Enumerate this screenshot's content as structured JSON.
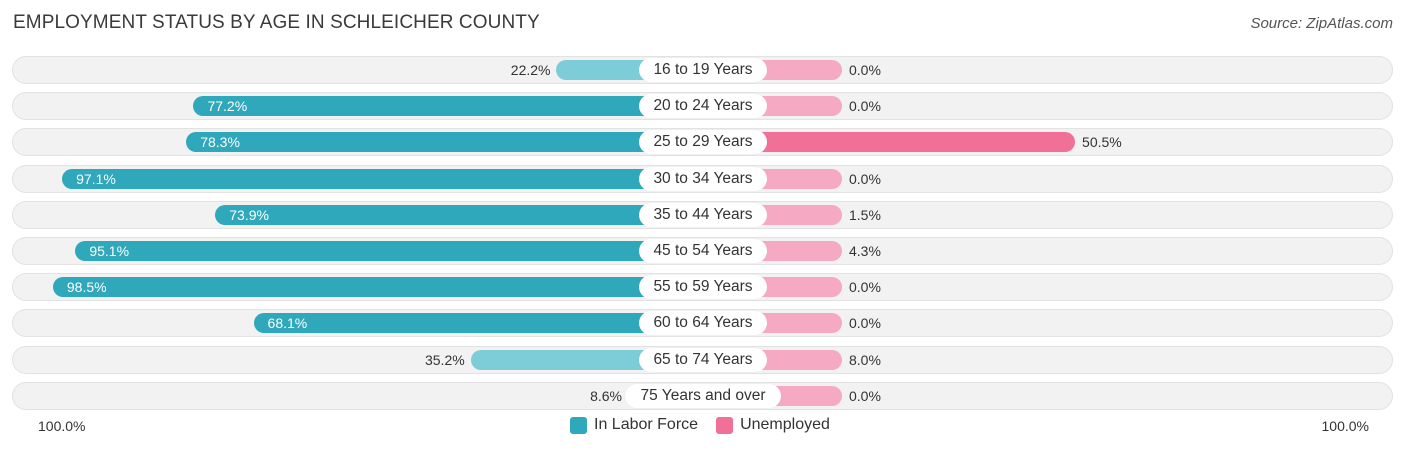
{
  "title": "EMPLOYMENT STATUS BY AGE IN SCHLEICHER COUNTY",
  "source": "Source: ZipAtlas.com",
  "colors": {
    "labor_force": "#2ea8ba",
    "labor_force_light": "#7ccdd7",
    "unemployed": "#f07097",
    "unemployed_light": "#f6a9c2"
  },
  "axis": {
    "left_label": "100.0%",
    "right_label": "100.0%"
  },
  "legend": [
    {
      "name": "In Labor Force",
      "color": "#2ea8ba"
    },
    {
      "name": "Unemployed",
      "color": "#f07097"
    }
  ],
  "chart_data": {
    "type": "bar",
    "title": "EMPLOYMENT STATUS BY AGE IN SCHLEICHER COUNTY",
    "orientation": "diverging-horizontal",
    "categories": [
      "16 to 19 Years",
      "20 to 24 Years",
      "25 to 29 Years",
      "30 to 34 Years",
      "35 to 44 Years",
      "45 to 54 Years",
      "55 to 59 Years",
      "60 to 64 Years",
      "65 to 74 Years",
      "75 Years and over"
    ],
    "series": [
      {
        "name": "In Labor Force",
        "values": [
          22.2,
          77.2,
          78.3,
          97.1,
          73.9,
          95.1,
          98.5,
          68.1,
          35.2,
          8.6
        ],
        "labels": [
          "22.2%",
          "77.2%",
          "78.3%",
          "97.1%",
          "73.9%",
          "95.1%",
          "98.5%",
          "68.1%",
          "35.2%",
          "8.6%"
        ]
      },
      {
        "name": "Unemployed",
        "values": [
          0.0,
          0.0,
          50.5,
          0.0,
          1.5,
          4.3,
          0.0,
          0.0,
          8.0,
          0.0
        ],
        "labels": [
          "0.0%",
          "0.0%",
          "50.5%",
          "0.0%",
          "1.5%",
          "4.3%",
          "0.0%",
          "0.0%",
          "8.0%",
          "0.0%"
        ]
      }
    ],
    "xlim": [
      -100,
      100
    ],
    "xlabel": "",
    "ylabel": "",
    "legend_position": "bottom-center"
  }
}
